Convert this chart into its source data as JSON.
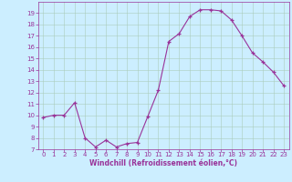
{
  "x": [
    0,
    1,
    2,
    3,
    4,
    5,
    6,
    7,
    8,
    9,
    10,
    11,
    12,
    13,
    14,
    15,
    16,
    17,
    18,
    19,
    20,
    21,
    22,
    23
  ],
  "y": [
    9.8,
    10.0,
    10.0,
    11.1,
    8.0,
    7.2,
    7.8,
    7.2,
    7.5,
    7.6,
    9.9,
    12.2,
    16.5,
    17.2,
    18.7,
    19.3,
    19.3,
    19.2,
    18.4,
    17.0,
    15.5,
    14.7,
    13.8,
    12.6
  ],
  "line_color": "#993399",
  "marker": "+",
  "marker_size": 3,
  "bg_color": "#cceeff",
  "grid_color": "#aaccbb",
  "xlabel": "Windchill (Refroidissement éolien,°C)",
  "xlabel_color": "#993399",
  "tick_color": "#993399",
  "ylim": [
    7,
    20
  ],
  "xlim": [
    -0.5,
    23.5
  ],
  "yticks": [
    7,
    8,
    9,
    10,
    11,
    12,
    13,
    14,
    15,
    16,
    17,
    18,
    19
  ],
  "xticks": [
    0,
    1,
    2,
    3,
    4,
    5,
    6,
    7,
    8,
    9,
    10,
    11,
    12,
    13,
    14,
    15,
    16,
    17,
    18,
    19,
    20,
    21,
    22,
    23
  ],
  "tick_fontsize": 5.0,
  "xlabel_fontsize": 5.5
}
